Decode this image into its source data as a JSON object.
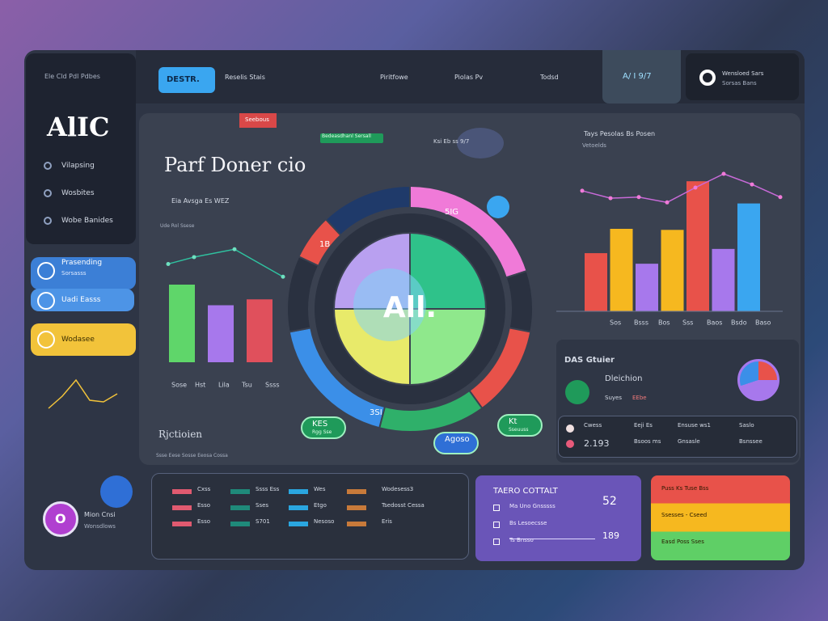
{
  "sidebar": {
    "caption": "Ele Cld Pdl Pdbes",
    "logo": "AlIC",
    "nav": [
      "Vilapsing",
      "Wosbites",
      "Wobe Banides"
    ],
    "cards": [
      {
        "title": "Prasending",
        "subtitle": "Sorsasss"
      },
      {
        "title": "Uadi Easss"
      },
      {
        "title": "Wodasee"
      }
    ],
    "sparkline": [
      20,
      35,
      55,
      30,
      28,
      38
    ],
    "user": {
      "initial": "O",
      "name": "Mion Cnsi",
      "role": "Wonsdlows"
    }
  },
  "header": {
    "button": "DESTR.",
    "tabs": [
      "Reselis Stais",
      "Piritfowe",
      "Piolas Pv",
      "Todsd"
    ],
    "active_tab": "A/ I 9/7",
    "profile": {
      "name": "Wensloed Sars",
      "role": "Sorsas Bans"
    }
  },
  "main": {
    "tag": "Seebous",
    "status": "Bedeasdhanl Sersall",
    "kpi": "Ksi Eb ss 9/7",
    "title": "Parf Doner cio",
    "left_chart": {
      "title": "Eia Avsga Es WEZ",
      "subtitle": "Ude Rol Ssese",
      "ylim": [
        0,
        130
      ],
      "line": [
        100,
        107,
        115,
        87
      ],
      "bars": [
        79,
        58,
        64
      ],
      "labels": [
        "Sose",
        "Hst",
        "Lila",
        "Tsu",
        "Ssss"
      ]
    },
    "donut": {
      "label": "All.",
      "ring": [
        20,
        8,
        12,
        14,
        18,
        10,
        6,
        12
      ],
      "ring_labels": [
        "5IG",
        "1B",
        "3SI"
      ],
      "pie": [
        25,
        25,
        25,
        25
      ]
    },
    "badges": [
      {
        "title": "KES",
        "subtitle": "Rgg Sse"
      },
      {
        "title": "Kt",
        "subtitle": "Sseuuss"
      },
      {
        "title": "Agoso"
      }
    ],
    "section": {
      "title": "Rjctioien",
      "subtitle": "Ssse Eese Sosse Eeosa Cossa"
    },
    "right_chart": {
      "title": "Tays Pesolas Bs Posen",
      "subtitle": "Vetoelds",
      "ylim": [
        0,
        130
      ],
      "line": [
        114,
        107,
        108,
        103,
        117,
        130,
        120,
        108
      ],
      "bars": [
        55,
        78,
        45,
        77,
        123,
        59,
        102
      ],
      "labels": [
        "Sos",
        "Bsss",
        "Bos",
        "Sss",
        "Baos",
        "Bsdo",
        "Baso"
      ]
    },
    "detail": {
      "title": "DAS Gtuier",
      "subtitle": "Dleichion",
      "meta": [
        "Suyes",
        "EEbe"
      ],
      "rows": [
        [
          "Cwess",
          "Eeji Es",
          "Ensuse ws1",
          "Saslo"
        ],
        [
          "2.193",
          "Bsoos ms",
          "Gnsasle",
          "Bsnssee"
        ]
      ]
    }
  },
  "table": {
    "rows": [
      [
        "Cxss",
        "Ssss Ess",
        "Wes",
        "Wodesess3"
      ],
      [
        "Esso",
        "Sses",
        "Etgo",
        "Tsedosst Cessa"
      ],
      [
        "Esso",
        "S701",
        "Nesoso",
        "Eris"
      ]
    ]
  },
  "summary": {
    "title": "TAERO COTTALT",
    "rows": [
      "Ma Uno Gnsssss",
      "Bs Lesoecsse",
      "Ts Bnsso"
    ],
    "values": [
      52,
      189
    ]
  },
  "status_list": [
    "Puss Ks Tuse Bss",
    "Ssesses - Cseed",
    "Easd Poss Sses"
  ]
}
